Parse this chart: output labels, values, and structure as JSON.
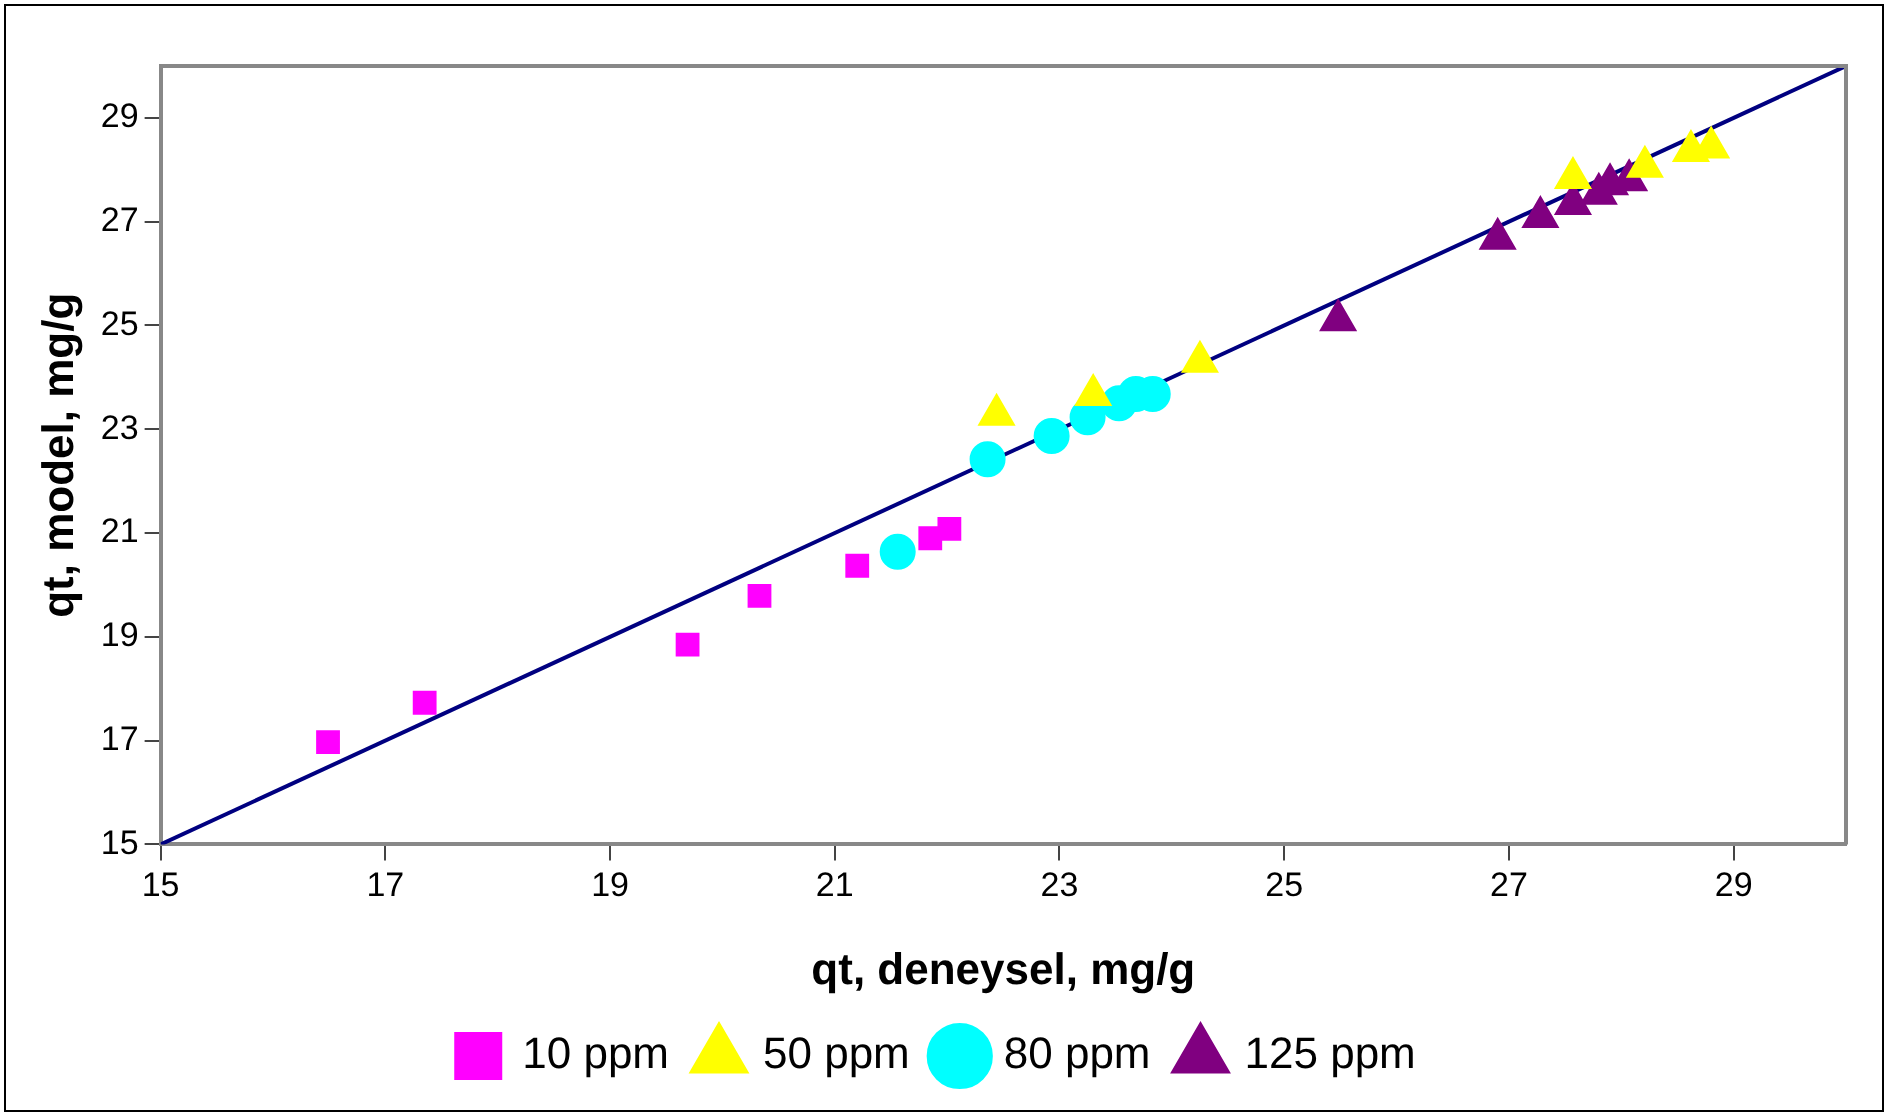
{
  "chart_data": {
    "type": "scatter",
    "xlabel": "qt, deneysel, mg/g",
    "ylabel": "qt, model, mg/g",
    "xlim": [
      15,
      30
    ],
    "ylim": [
      15,
      30
    ],
    "xticks": [
      15,
      17,
      19,
      21,
      23,
      25,
      27,
      29
    ],
    "yticks": [
      15,
      17,
      19,
      21,
      23,
      25,
      27,
      29
    ],
    "grid": false,
    "legend": "bottom",
    "series": [
      {
        "name": "10 ppm",
        "color": "#ff00ff",
        "marker": "square",
        "x": [
          16.49,
          17.35,
          19.69,
          20.33,
          21.2,
          21.85,
          22.02
        ],
        "values": [
          16.97,
          17.73,
          18.85,
          19.79,
          20.37,
          20.9,
          21.08
        ]
      },
      {
        "name": "50 ppm",
        "color": "#ffff00",
        "marker": "triangle",
        "x": [
          22.44,
          23.3,
          24.25,
          27.57,
          28.21,
          28.62,
          28.8
        ],
        "values": [
          23.28,
          23.66,
          24.3,
          27.84,
          28.06,
          28.36,
          28.43
        ]
      },
      {
        "name": "80 ppm",
        "color": "#00ffff",
        "marker": "circle",
        "x": [
          21.56,
          22.36,
          22.93,
          23.25,
          23.53,
          23.68,
          23.83
        ],
        "values": [
          20.64,
          22.42,
          22.87,
          23.23,
          23.5,
          23.68,
          23.68
        ]
      },
      {
        "name": "125 ppm",
        "color": "#800080",
        "marker": "triangle",
        "x": [
          25.48,
          26.9,
          27.28,
          27.57,
          27.8,
          27.9,
          28.07
        ],
        "values": [
          25.1,
          26.67,
          27.09,
          27.34,
          27.54,
          27.72,
          27.8
        ]
      },
      {
        "type": "line",
        "color": "#000080",
        "marker": "none",
        "x": [
          15,
          30
        ],
        "values": [
          15,
          30
        ]
      }
    ]
  }
}
